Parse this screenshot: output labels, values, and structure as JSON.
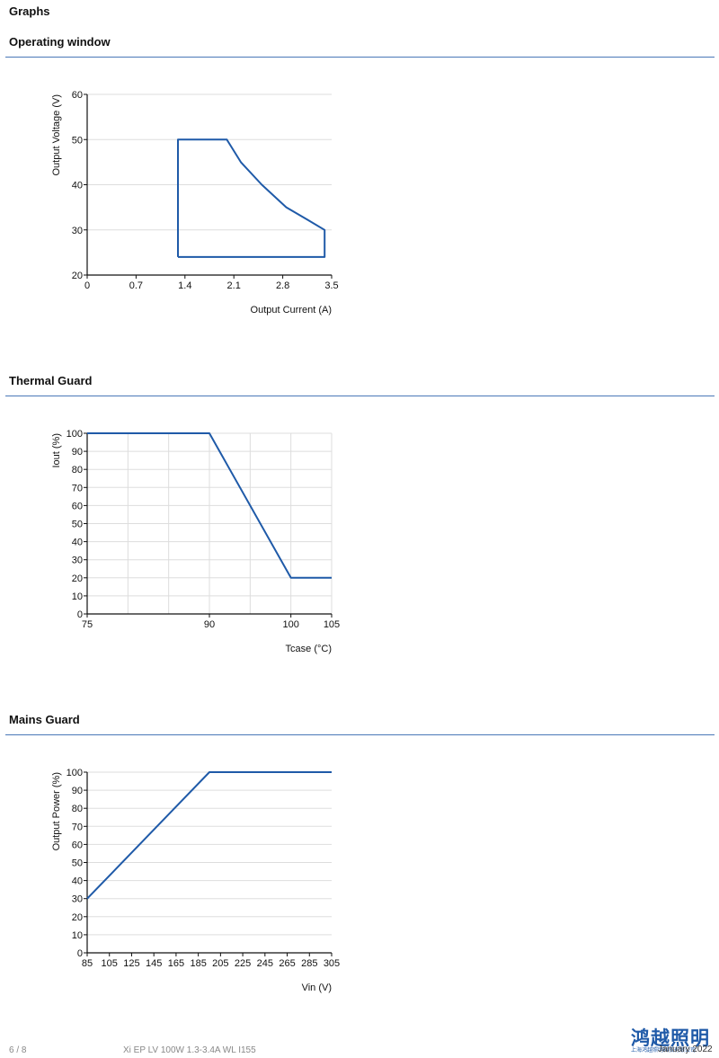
{
  "page": {
    "heading": "Graphs",
    "footer": {
      "page": "6 / 8",
      "product": "Xi EP LV 100W 1.3-3.4A WL I155",
      "date": "January 2022"
    },
    "logo": {
      "text": "鸿越照明",
      "sub": "上海鸿越照明科技有限公司"
    }
  },
  "sections": [
    {
      "title": "Operating window"
    },
    {
      "title": "Thermal Guard"
    },
    {
      "title": "Mains Guard"
    }
  ],
  "colors": {
    "line": "#1f5aa8",
    "grid": "#dddddd",
    "rule": "#4a78b8"
  },
  "chart_data": [
    {
      "type": "line",
      "title": "Operating window",
      "xlabel": "Output Current (A)",
      "ylabel": "Output Voltage (V)",
      "xlim": [
        0,
        3.5
      ],
      "ylim": [
        20,
        60
      ],
      "xticks": [
        0,
        0.7,
        1.4,
        2.1,
        2.8,
        3.5
      ],
      "yticks": [
        20,
        30,
        40,
        50,
        60
      ],
      "grid": "horizontal",
      "series": [
        {
          "points": [
            [
              1.3,
              24
            ],
            [
              1.3,
              50
            ],
            [
              2.0,
              50
            ],
            [
              2.2,
              45
            ],
            [
              2.5,
              40
            ],
            [
              2.85,
              35
            ],
            [
              3.15,
              32.3
            ],
            [
              3.4,
              30
            ],
            [
              3.4,
              24
            ],
            [
              1.3,
              24
            ]
          ]
        }
      ]
    },
    {
      "type": "line",
      "title": "Thermal Guard",
      "xlabel": "Tcase (°C)",
      "ylabel": "Iout (%)",
      "xlim": [
        75,
        105
      ],
      "ylim": [
        0,
        100
      ],
      "xticks": [
        75,
        90,
        100,
        105
      ],
      "yticks": [
        0,
        10,
        20,
        30,
        40,
        50,
        60,
        70,
        80,
        90,
        100
      ],
      "grid": "both",
      "xgrid_values": [
        75,
        80,
        85,
        90,
        95,
        100,
        105
      ],
      "series": [
        {
          "points": [
            [
              75,
              100
            ],
            [
              90,
              100
            ],
            [
              100,
              20
            ],
            [
              105,
              20
            ]
          ]
        }
      ]
    },
    {
      "type": "line",
      "title": "Mains Guard",
      "xlabel": "Vin (V)",
      "ylabel": "Output Power (%)",
      "xlim": [
        85,
        305
      ],
      "ylim": [
        0,
        100
      ],
      "xticks": [
        85,
        105,
        125,
        145,
        165,
        185,
        205,
        225,
        245,
        265,
        285,
        305
      ],
      "yticks": [
        0,
        10,
        20,
        30,
        40,
        50,
        60,
        70,
        80,
        90,
        100
      ],
      "grid": "horizontal",
      "series": [
        {
          "points": [
            [
              85,
              30
            ],
            [
              195,
              100
            ],
            [
              305,
              100
            ]
          ]
        }
      ]
    }
  ]
}
